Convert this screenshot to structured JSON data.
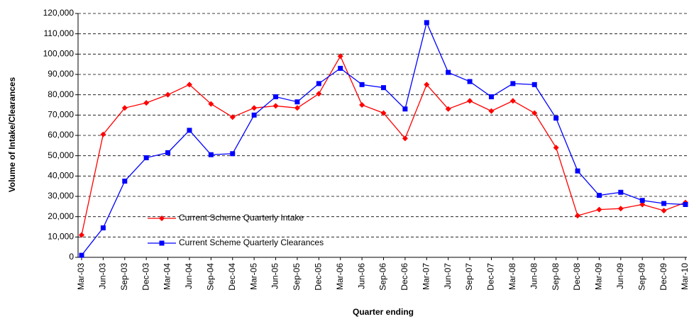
{
  "chart_data": {
    "type": "line",
    "x_label": "Quarter ending",
    "y_label": "Volume of Intake/Clearances",
    "categories": [
      "Mar-03",
      "Jun-03",
      "Sep-03",
      "Dec-03",
      "Mar-04",
      "Jun-04",
      "Sep-04",
      "Dec-04",
      "Mar-05",
      "Jun-05",
      "Sep-05",
      "Dec-05",
      "Mar-06",
      "Jun-06",
      "Sep-06",
      "Dec-06",
      "Mar-07",
      "Jun-07",
      "Sep-07",
      "Dec-07",
      "Mar-08",
      "Jun-08",
      "Sep-08",
      "Dec-08",
      "Mar-09",
      "Jun-09",
      "Sep-09",
      "Dec-09",
      "Mar-10"
    ],
    "series": [
      {
        "name": "Current Scheme Quarterly Intake",
        "color": "#ff0000",
        "marker": "diamond",
        "values": [
          11000,
          60500,
          73500,
          76000,
          80000,
          85000,
          75500,
          69000,
          73500,
          74500,
          73500,
          80500,
          99000,
          75000,
          71000,
          58500,
          85000,
          73000,
          77000,
          72000,
          77000,
          71000,
          54000,
          20500,
          23500,
          24000,
          26000,
          23000,
          27000
        ]
      },
      {
        "name": "Current Scheme Quarterly Clearances",
        "color": "#0000ff",
        "marker": "square",
        "values": [
          1000,
          14500,
          37500,
          49000,
          51500,
          62500,
          50500,
          51000,
          70000,
          79000,
          76500,
          85500,
          93000,
          85000,
          83500,
          73000,
          115500,
          91000,
          86500,
          79000,
          85500,
          85000,
          68500,
          42500,
          30500,
          32000,
          28000,
          26500,
          26000
        ]
      }
    ],
    "ylim": [
      0,
      120000
    ],
    "yticks": [
      0,
      {
        "value": 10000,
        "label": "10,000"
      },
      {
        "value": 20000,
        "label": "20,000"
      },
      {
        "value": 30000,
        "label": "30,000"
      },
      {
        "value": 40000,
        "label": "40,000"
      },
      {
        "value": 50000,
        "label": "50,000"
      },
      {
        "value": 60000,
        "label": "60,000"
      },
      {
        "value": 70000,
        "label": "70,000"
      },
      {
        "value": 80000,
        "label": "80,000"
      },
      {
        "value": 90000,
        "label": "90,000"
      },
      {
        "value": 100000,
        "label": "100,000"
      },
      {
        "value": 110000,
        "label": "110,000"
      },
      {
        "value": 120000,
        "label": "120,000"
      }
    ],
    "grid": true
  }
}
